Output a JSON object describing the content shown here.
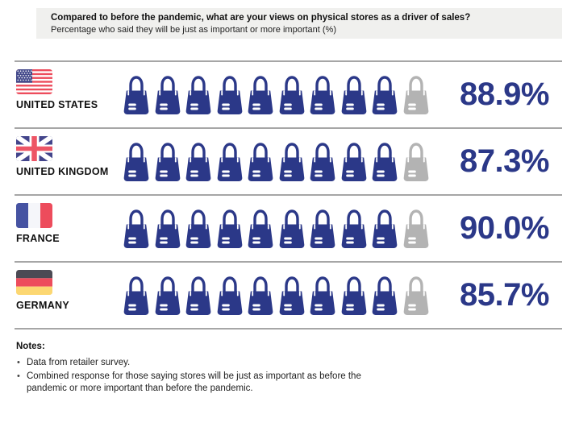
{
  "header": {
    "title": "Compared to before the pandemic, what are your views on physical stores as a driver of sales?",
    "subtitle": "Percentage who said they will be just as important or more important (%)"
  },
  "chart_data": {
    "type": "bar",
    "style": "pictogram",
    "unit_icon": "shopping-bag-icon",
    "icons_per_row": 10,
    "title": "Compared to before the pandemic, what are your views on physical stores as a driver of sales?",
    "subtitle": "Percentage who said they will be just as important or more important (%)",
    "categories": [
      "UNITED STATES",
      "UNITED KINGDOM",
      "FRANCE",
      "GERMANY"
    ],
    "values": [
      88.9,
      87.3,
      90.0,
      85.7
    ],
    "value_labels": [
      "88.9%",
      "87.3%",
      "90.0%",
      "85.7%"
    ],
    "filled_icon_counts": [
      9,
      9,
      9,
      9
    ],
    "empty_icon_counts": [
      1,
      1,
      1,
      1
    ],
    "legend_position": "none",
    "grid": false,
    "colors": {
      "filled": "#2B3888",
      "empty": "#B3B3B3",
      "value_text": "#2B3888",
      "divider": "#A6A6A6",
      "header_bg": "#F0F0EE"
    }
  },
  "rows": [
    {
      "country": "UNITED STATES",
      "flag": "us",
      "flag_icon": "us-flag-icon",
      "value": 88.9,
      "value_label": "88.9%",
      "filled": 9,
      "empty": 1
    },
    {
      "country": "UNITED KINGDOM",
      "flag": "gb",
      "flag_icon": "uk-flag-icon",
      "value": 87.3,
      "value_label": "87.3%",
      "filled": 9,
      "empty": 1
    },
    {
      "country": "FRANCE",
      "flag": "fr",
      "flag_icon": "france-flag-icon",
      "value": 90.0,
      "value_label": "90.0%",
      "filled": 9,
      "empty": 1
    },
    {
      "country": "GERMANY",
      "flag": "de",
      "flag_icon": "germany-flag-icon",
      "value": 85.7,
      "value_label": "85.7%",
      "filled": 9,
      "empty": 1
    }
  ],
  "notes": {
    "heading": "Notes:",
    "items": [
      "Data from retailer survey.",
      "Combined response for those saying stores will be just as important as before the pandemic or more important than before the pandemic."
    ]
  }
}
